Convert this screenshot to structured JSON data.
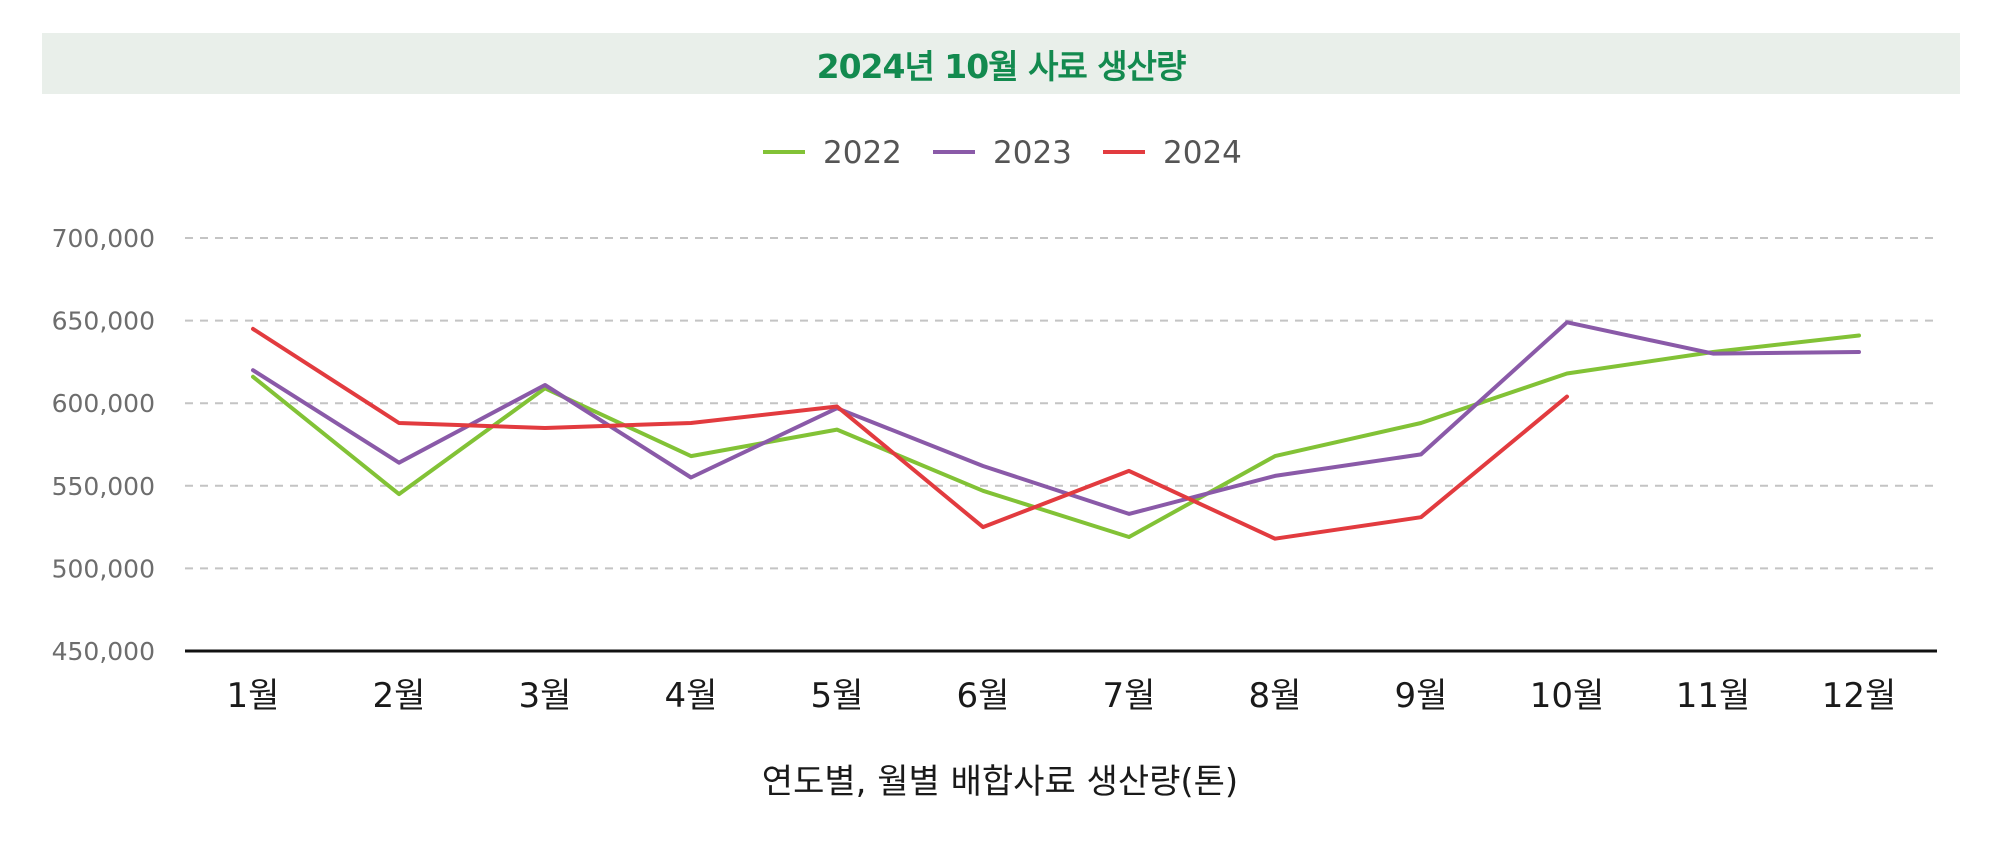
{
  "colors": {
    "title": "#138a4f",
    "title_bg": "#e9efea",
    "grid": "#c4c4c4",
    "axis": "#111111"
  },
  "chart_data": {
    "type": "line",
    "title": "2024년 10월 사료 생산량",
    "xlabel": "연도별, 월별 배합사료 생산량(톤)",
    "ylabel": "",
    "categories": [
      "1월",
      "2월",
      "3월",
      "4월",
      "5월",
      "6월",
      "7월",
      "8월",
      "9월",
      "10월",
      "11월",
      "12월"
    ],
    "ylim": [
      450000,
      700000
    ],
    "yticks": [
      450000,
      500000,
      550000,
      600000,
      650000,
      700000
    ],
    "ytick_labels": [
      "450,000",
      "500,000",
      "550,000",
      "600,000",
      "650,000",
      "700,000"
    ],
    "grid": "horizontal-dashed",
    "legend_position": "top-center",
    "series": [
      {
        "name": "2022",
        "color": "#82c236",
        "values": [
          616000,
          545000,
          609000,
          568000,
          584000,
          547000,
          519000,
          568000,
          588000,
          618000,
          631000,
          641000
        ]
      },
      {
        "name": "2023",
        "color": "#8a5aa8",
        "values": [
          620000,
          564000,
          611000,
          555000,
          597000,
          562000,
          533000,
          556000,
          569000,
          649000,
          630000,
          631000
        ]
      },
      {
        "name": "2024",
        "color": "#e23b3f",
        "values": [
          645000,
          588000,
          585000,
          588000,
          598000,
          525000,
          559000,
          518000,
          531000,
          604000,
          null,
          null
        ]
      }
    ]
  }
}
